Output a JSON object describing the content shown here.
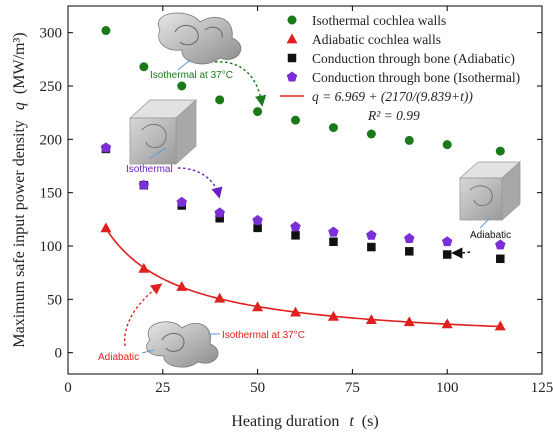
{
  "chart_data": {
    "type": "scatter",
    "xlabel": "Heating duration",
    "xlabel_var": "t",
    "xlabel_unit": "(s)",
    "ylabel": "Maximum safe input power density",
    "ylabel_var": "q",
    "ylabel_unit": "(MW/m³)",
    "xlim": [
      0,
      125
    ],
    "ylim": [
      -20,
      325
    ],
    "xticks": [
      0,
      25,
      50,
      75,
      100,
      125
    ],
    "yticks": [
      0,
      50,
      100,
      150,
      200,
      250,
      300
    ],
    "grid": false,
    "legend_position": "top-right",
    "series": [
      {
        "name": "Isothermal cochlea walls",
        "marker": "circle",
        "color": "#1a7a1a",
        "x": [
          10,
          20,
          30,
          40,
          50,
          60,
          70,
          80,
          90,
          100,
          114
        ],
        "y": [
          302,
          268,
          250,
          237,
          226,
          218,
          211,
          205,
          199,
          195,
          189
        ]
      },
      {
        "name": "Adiabatic cochlea walls",
        "marker": "triangle",
        "color": "#e0201e",
        "x": [
          10,
          20,
          30,
          40,
          50,
          60,
          70,
          80,
          90,
          100,
          114
        ],
        "y": [
          117,
          79,
          62,
          51,
          43,
          38,
          34,
          31,
          29,
          27,
          25
        ]
      },
      {
        "name": "Conduction through bone (Adiabatic)",
        "marker": "square",
        "color": "#111111",
        "x": [
          10,
          20,
          30,
          40,
          50,
          60,
          70,
          80,
          90,
          100,
          114
        ],
        "y": [
          191,
          157,
          138,
          126,
          117,
          110,
          104,
          99,
          95,
          92,
          88
        ]
      },
      {
        "name": "Conduction through bone (Isothermal)",
        "marker": "pentagon",
        "color": "#7b2fd6",
        "x": [
          10,
          20,
          30,
          40,
          50,
          60,
          70,
          80,
          90,
          100,
          114
        ],
        "y": [
          192,
          157,
          141,
          131,
          124,
          118,
          113,
          110,
          107,
          104,
          101
        ]
      }
    ],
    "fit": {
      "name": "q = 6.969 + (2170/(9.839+t))",
      "r2_label": "R² = 0.99",
      "color": "#e0201e",
      "a": 6.969,
      "b": 2170,
      "c": 9.839,
      "x_range": [
        10,
        114
      ]
    },
    "annotations": [
      {
        "id": "iso37-top",
        "text": "Isothermal at 37°C",
        "color": "#1a7a1a"
      },
      {
        "id": "iso-mid",
        "text": "Isothermal",
        "color": "#6a1fc0"
      },
      {
        "id": "adiabatic-right",
        "text": "Adiabatic",
        "color": "#111111"
      },
      {
        "id": "adiabatic-bottom",
        "text": "Adiabatic",
        "color": "#e0201e"
      },
      {
        "id": "iso37-bottom",
        "text": "Isothermal at 37°C",
        "color": "#e0201e"
      }
    ]
  }
}
